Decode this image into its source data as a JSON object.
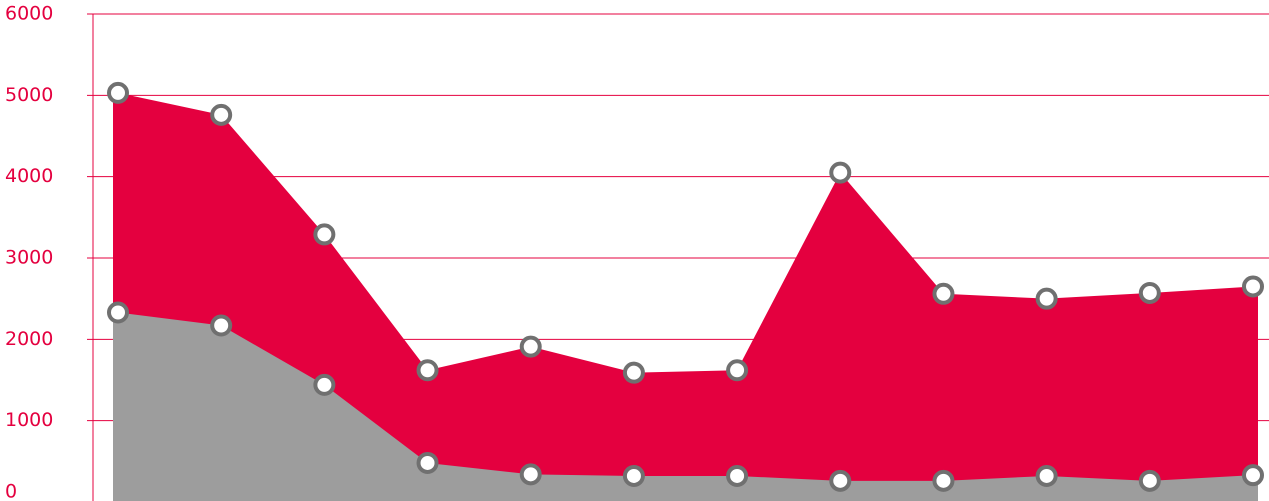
{
  "chart_data": {
    "type": "area",
    "categories": [
      null,
      null,
      null,
      null,
      null,
      null,
      null,
      null,
      null,
      null,
      null,
      null
    ],
    "series": [
      {
        "color": "#e4003f",
        "values": [
          5030,
          4760,
          3290,
          1620,
          1910,
          1590,
          1620,
          4050,
          2560,
          2500,
          2570,
          2650
        ]
      },
      {
        "color": "#9d9d9d",
        "values": [
          2330,
          2170,
          1440,
          480,
          340,
          320,
          320,
          260,
          260,
          320,
          260,
          330
        ]
      }
    ],
    "ylim": [
      0,
      6000
    ],
    "yticks": [
      0,
      1000,
      2000,
      3000,
      4000,
      5000,
      6000
    ],
    "grid": true,
    "grid_color": "#e4003f",
    "marker_stroke": "#707070"
  }
}
